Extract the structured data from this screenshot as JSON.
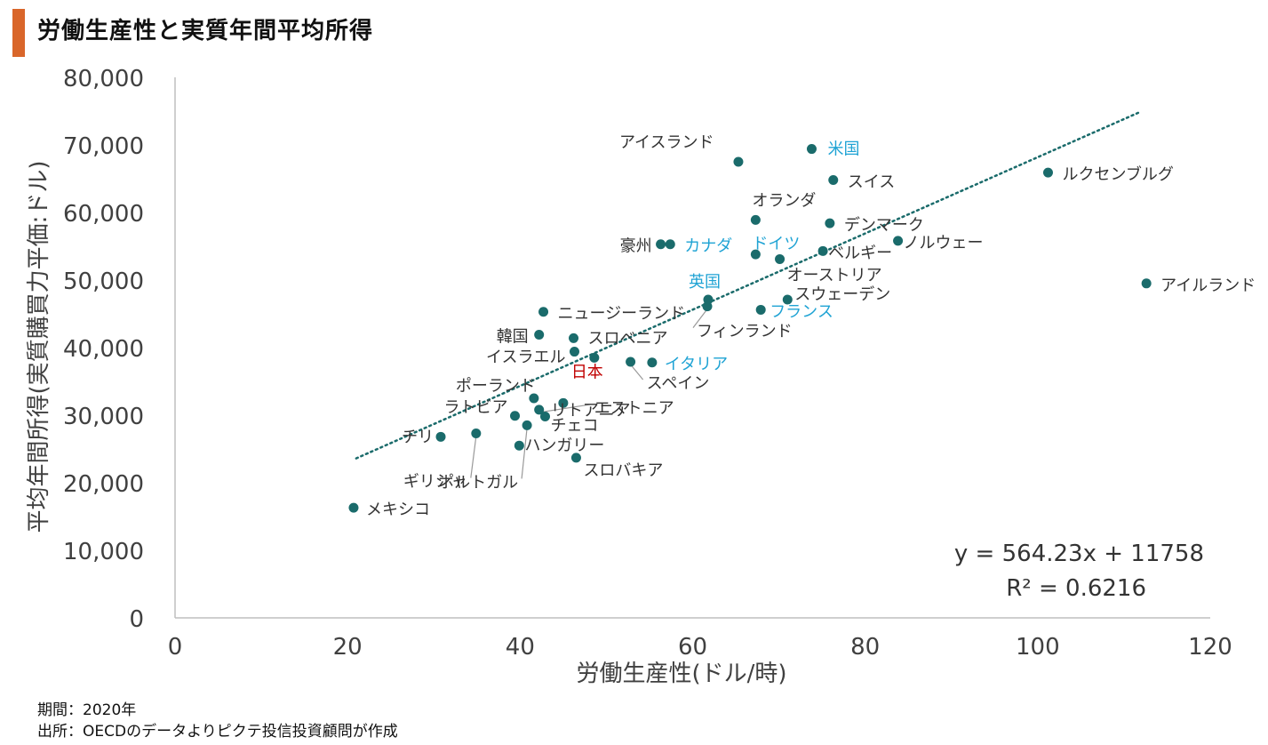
{
  "header": {
    "title": "労働生産性と実質年間平均所得"
  },
  "footer": {
    "period": "期間：2020年",
    "source": "出所：OECDのデータよりピクテ投信投資顧問が作成"
  },
  "colors": {
    "accent": "#d9662a",
    "point": "#1a6b6b",
    "highlight_blue": "#1fa3d4",
    "highlight_red": "#c00000",
    "axis": "#bfbfbf",
    "trend": "#1a6b6b"
  },
  "chart_data": {
    "type": "scatter",
    "xlabel": "労働生産性(ドル/時)",
    "ylabel": "平均年間所得(実質購買力平価:ドル)",
    "xlim": [
      0,
      120
    ],
    "ylim": [
      0,
      80000
    ],
    "x_ticks": [
      "0",
      "20",
      "40",
      "60",
      "80",
      "100",
      "120"
    ],
    "y_ticks": [
      "0",
      "10,000",
      "20,000",
      "30,000",
      "40,000",
      "50,000",
      "60,000",
      "70,000",
      "80,000"
    ],
    "trendline": {
      "slope": 564.23,
      "intercept": 11758,
      "x_range": [
        21,
        112
      ],
      "style": "dotted"
    },
    "equation": "y = 564.23x + 11758",
    "r_squared": "R² = 0.6216",
    "points": [
      {
        "label": "メキシコ",
        "x": 20.7,
        "y": 16300,
        "color": "default"
      },
      {
        "label": "チリ",
        "x": 30.8,
        "y": 26800,
        "color": "default"
      },
      {
        "label": "ギリシャ",
        "x": 34.9,
        "y": 27300,
        "color": "default"
      },
      {
        "label": "ハンガリー",
        "x": 39.9,
        "y": 25500,
        "color": "default"
      },
      {
        "label": "ポルトガル",
        "x": 40.8,
        "y": 28500,
        "color": "default"
      },
      {
        "label": "ラトビア",
        "x": 39.4,
        "y": 29900,
        "color": "default"
      },
      {
        "label": "チェコ",
        "x": 42.9,
        "y": 29800,
        "color": "default"
      },
      {
        "label": "エストニア",
        "x": 42.2,
        "y": 30800,
        "color": "default"
      },
      {
        "label": "ポーランド",
        "x": 41.6,
        "y": 32500,
        "color": "default"
      },
      {
        "label": "リトアニア",
        "x": 45.0,
        "y": 31800,
        "color": "default"
      },
      {
        "label": "スロバキア",
        "x": 46.5,
        "y": 23700,
        "color": "default"
      },
      {
        "label": "日本",
        "x": 48.6,
        "y": 38500,
        "color": "red"
      },
      {
        "label": "イスラエル",
        "x": 46.3,
        "y": 39400,
        "color": "default"
      },
      {
        "label": "スロベニア",
        "x": 46.2,
        "y": 41400,
        "color": "default"
      },
      {
        "label": "韓国",
        "x": 42.2,
        "y": 41900,
        "color": "default"
      },
      {
        "label": "ニュージーランド",
        "x": 42.7,
        "y": 45300,
        "color": "default"
      },
      {
        "label": "スペイン",
        "x": 52.8,
        "y": 37900,
        "color": "default"
      },
      {
        "label": "イタリア",
        "x": 55.3,
        "y": 37800,
        "color": "blue"
      },
      {
        "label": "英国",
        "x": 61.8,
        "y": 47100,
        "color": "blue"
      },
      {
        "label": "フィンランド",
        "x": 61.7,
        "y": 46100,
        "color": "default"
      },
      {
        "label": "フランス",
        "x": 67.9,
        "y": 45600,
        "color": "blue"
      },
      {
        "label": "スウェーデン",
        "x": 71.0,
        "y": 47100,
        "color": "default"
      },
      {
        "label": "豪州",
        "x": 56.3,
        "y": 55300,
        "color": "default"
      },
      {
        "label": "カナダ",
        "x": 57.4,
        "y": 55300,
        "color": "blue"
      },
      {
        "label": "ドイツ",
        "x": 67.3,
        "y": 53800,
        "color": "blue"
      },
      {
        "label": "オーストリア",
        "x": 70.1,
        "y": 53100,
        "color": "default"
      },
      {
        "label": "ベルギー",
        "x": 75.1,
        "y": 54300,
        "color": "default"
      },
      {
        "label": "オランダ",
        "x": 67.3,
        "y": 58900,
        "color": "default"
      },
      {
        "label": "デンマーク",
        "x": 75.9,
        "y": 58400,
        "color": "default"
      },
      {
        "label": "ノルウェー",
        "x": 83.8,
        "y": 55800,
        "color": "default"
      },
      {
        "label": "アイスランド",
        "x": 65.3,
        "y": 67500,
        "color": "default"
      },
      {
        "label": "米国",
        "x": 73.8,
        "y": 69400,
        "color": "blue"
      },
      {
        "label": "スイス",
        "x": 76.3,
        "y": 64800,
        "color": "default"
      },
      {
        "label": "ルクセンブルグ",
        "x": 101.2,
        "y": 65900,
        "color": "default"
      },
      {
        "label": "アイルランド",
        "x": 112.6,
        "y": 49500,
        "color": "default"
      }
    ]
  }
}
